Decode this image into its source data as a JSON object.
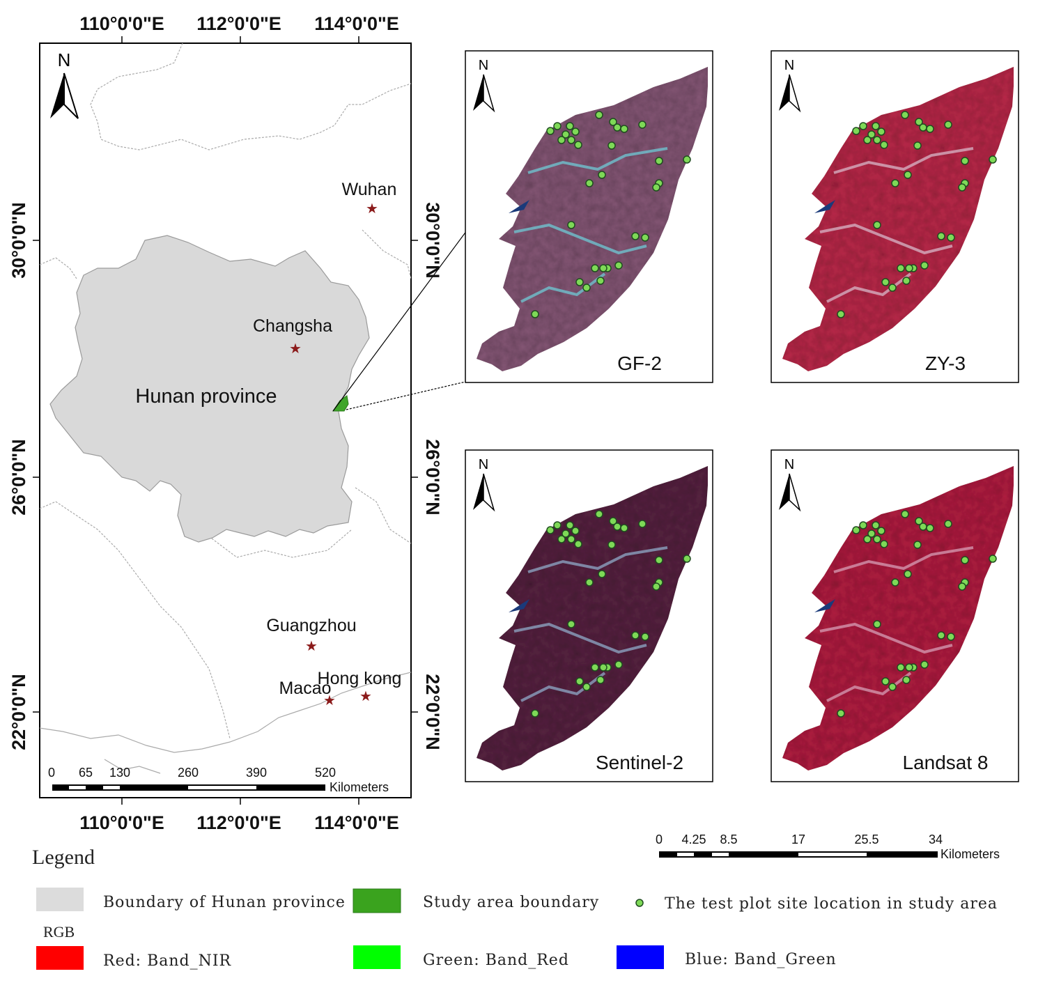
{
  "main_map": {
    "lon_labels": [
      "110°0'0\"E",
      "112°0'0\"E",
      "114°0'0\"E"
    ],
    "lat_labels": [
      "30°0'0\"N",
      "26°0'0\"N",
      "22°0'0\"N"
    ],
    "north": "N",
    "province_label": "Hunan province",
    "cities": [
      {
        "name": "Wuhan"
      },
      {
        "name": "Changsha"
      },
      {
        "name": "Guangzhou"
      },
      {
        "name": "Macao"
      },
      {
        "name": "Hong kong"
      }
    ],
    "scale": {
      "ticks": [
        "0",
        "65",
        "130",
        "260",
        "390",
        "520"
      ],
      "unit": "Kilometers"
    },
    "colors": {
      "province_fill": "#d9d9d9",
      "study_area": "#3fa52a",
      "city_star": "#8b1a1a"
    }
  },
  "panels": [
    {
      "label": "GF-2",
      "north": "N",
      "style": "gf2"
    },
    {
      "label": "ZY-3",
      "north": "N",
      "style": "zy3"
    },
    {
      "label": "Sentinel-2",
      "north": "N",
      "style": "s2"
    },
    {
      "label": "Landsat 8",
      "north": "N",
      "style": "l8"
    }
  ],
  "panels_latlabels": [
    "30°0'0\"N",
    "26°0'0\"N",
    "22°0'0\"N"
  ],
  "panel_scale": {
    "ticks": [
      "0",
      "4.25",
      "8.5",
      "17",
      "25.5",
      "34"
    ],
    "unit": "Kilometers"
  },
  "legend": {
    "title": "Legend",
    "items": [
      {
        "label": "Boundary of Hunan province",
        "color": "#dcdcdc"
      },
      {
        "label": "Study area boundary",
        "color": "#3aa31e"
      },
      {
        "label": "The test plot site location in study area",
        "color": "#7ed957"
      }
    ],
    "rgb_title": "RGB",
    "rgb_items": [
      {
        "label": "Red:  Band_NIR",
        "color": "#ff0000"
      },
      {
        "label": "Green:  Band_Red",
        "color": "#00ff00"
      },
      {
        "label": "Blue:  Band_Green",
        "color": "#0000ff"
      }
    ]
  }
}
